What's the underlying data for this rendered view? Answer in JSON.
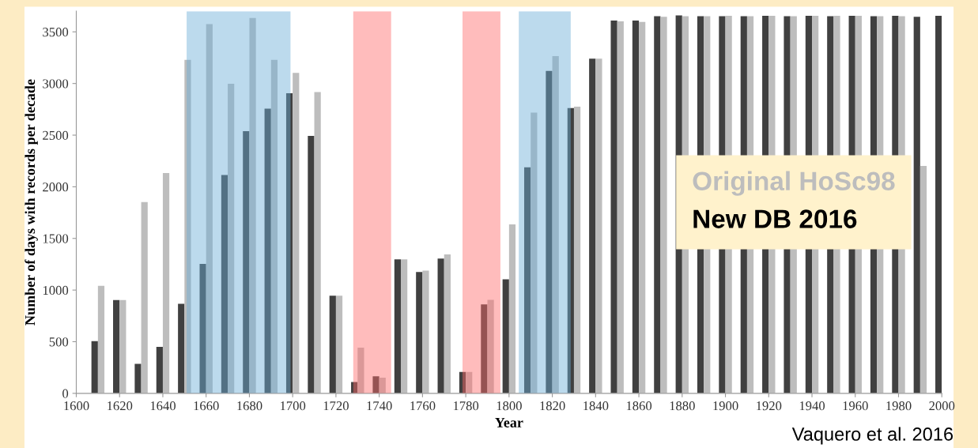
{
  "chart_data": {
    "type": "bar",
    "xlabel": "Year",
    "ylabel": "Number of days with records per decade",
    "x": [
      1610,
      1620,
      1630,
      1640,
      1650,
      1660,
      1670,
      1680,
      1690,
      1700,
      1710,
      1720,
      1730,
      1740,
      1750,
      1760,
      1770,
      1780,
      1790,
      1800,
      1810,
      1820,
      1830,
      1840,
      1850,
      1860,
      1870,
      1880,
      1890,
      1900,
      1910,
      1920,
      1930,
      1940,
      1950,
      1960,
      1970,
      1980,
      1990,
      2000
    ],
    "series": [
      {
        "name": "New DB 2016",
        "color": "#404040",
        "values": [
          505,
          903,
          285,
          450,
          867,
          1254,
          2113,
          2539,
          2757,
          2906,
          2492,
          945,
          110,
          166,
          1298,
          1174,
          1304,
          207,
          862,
          1105,
          2188,
          3122,
          2762,
          3240,
          3610,
          3610,
          3652,
          3660,
          3652,
          3652,
          3652,
          3655,
          3652,
          3655,
          3652,
          3655,
          3652,
          3655,
          3646,
          3655
        ]
      },
      {
        "name": "Original HoSc98",
        "color": "#bdbdbd",
        "values": [
          1041,
          903,
          1851,
          2133,
          3229,
          3575,
          2997,
          3635,
          3229,
          3102,
          2917,
          945,
          442,
          152,
          1298,
          1188,
          1345,
          207,
          906,
          1635,
          2718,
          3265,
          2776,
          3240,
          3602,
          3597,
          3646,
          3652,
          3652,
          3655,
          3652,
          3655,
          3652,
          3655,
          3655,
          3655,
          3652,
          3652,
          2202,
          null
        ]
      }
    ],
    "xlim": [
      1600,
      2000
    ],
    "xticks": [
      1600,
      1620,
      1640,
      1660,
      1680,
      1700,
      1720,
      1740,
      1760,
      1780,
      1800,
      1820,
      1840,
      1860,
      1880,
      1900,
      1920,
      1940,
      1960,
      1980,
      2000
    ],
    "ylim": [
      0,
      3700
    ],
    "yticks": [
      0,
      500,
      1000,
      1500,
      2000,
      2500,
      3000,
      3500
    ],
    "bands": [
      {
        "axis": "x",
        "from": 1651,
        "to": 1699,
        "color": "#6baed6"
      },
      {
        "axis": "x",
        "from": 1728,
        "to": 1745.5,
        "color": "#ff6b6b"
      },
      {
        "axis": "x",
        "from": 1778.5,
        "to": 1796,
        "color": "#ff6b6b"
      },
      {
        "axis": "x",
        "from": 1804.5,
        "to": 1828.5,
        "color": "#6baed6"
      }
    ],
    "legend": "center right",
    "grid": false,
    "annotations": [
      "Vaquero et al. 2016"
    ]
  }
}
